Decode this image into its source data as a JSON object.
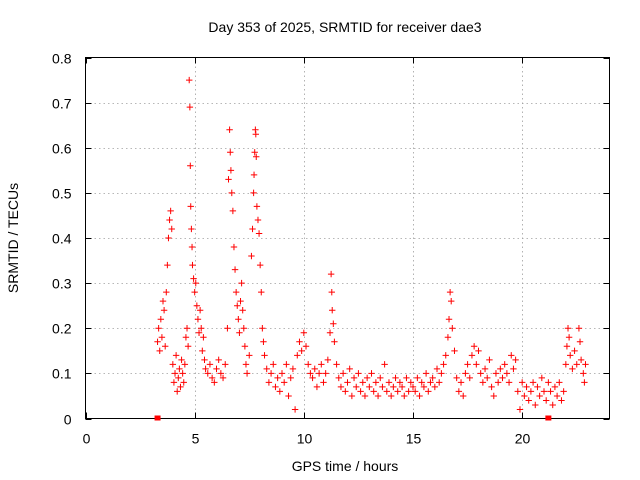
{
  "chart_data": {
    "type": "scatter",
    "title": "Day 353 of 2025, SRMTID for receiver dae3",
    "xlabel": "GPS time / hours",
    "ylabel": "SRMTID / TECUs",
    "xlim": [
      0,
      24
    ],
    "ylim": [
      0,
      0.8
    ],
    "xticks": [
      0,
      5,
      10,
      15,
      20
    ],
    "yticks": [
      0,
      0.1,
      0.2,
      0.3,
      0.4,
      0.5,
      0.6,
      0.7,
      0.8
    ],
    "grid": true,
    "marker": "+",
    "color": "#ff0000",
    "series": [
      {
        "name": "SRMTID",
        "points": [
          [
            3.3,
            0.0
          ],
          [
            21.2,
            0.0
          ],
          [
            3.3,
            0.17
          ],
          [
            3.35,
            0.2
          ],
          [
            3.4,
            0.15
          ],
          [
            3.45,
            0.22
          ],
          [
            3.5,
            0.18
          ],
          [
            3.55,
            0.26
          ],
          [
            3.6,
            0.24
          ],
          [
            3.65,
            0.16
          ],
          [
            3.7,
            0.28
          ],
          [
            3.75,
            0.34
          ],
          [
            3.8,
            0.4
          ],
          [
            3.85,
            0.44
          ],
          [
            3.9,
            0.46
          ],
          [
            3.95,
            0.42
          ],
          [
            4.0,
            0.12
          ],
          [
            4.05,
            0.08
          ],
          [
            4.1,
            0.1
          ],
          [
            4.15,
            0.14
          ],
          [
            4.2,
            0.06
          ],
          [
            4.25,
            0.09
          ],
          [
            4.3,
            0.11
          ],
          [
            4.35,
            0.07
          ],
          [
            4.4,
            0.13
          ],
          [
            4.45,
            0.1
          ],
          [
            4.5,
            0.08
          ],
          [
            4.55,
            0.12
          ],
          [
            4.6,
            0.18
          ],
          [
            4.65,
            0.2
          ],
          [
            4.7,
            0.16
          ],
          [
            4.75,
            0.75
          ],
          [
            4.78,
            0.69
          ],
          [
            4.8,
            0.56
          ],
          [
            4.82,
            0.47
          ],
          [
            4.85,
            0.42
          ],
          [
            4.88,
            0.38
          ],
          [
            4.9,
            0.34
          ],
          [
            4.95,
            0.31
          ],
          [
            5.0,
            0.28
          ],
          [
            5.05,
            0.3
          ],
          [
            5.1,
            0.25
          ],
          [
            5.15,
            0.22
          ],
          [
            5.2,
            0.19
          ],
          [
            5.25,
            0.24
          ],
          [
            5.3,
            0.2
          ],
          [
            5.35,
            0.15
          ],
          [
            5.4,
            0.18
          ],
          [
            5.45,
            0.13
          ],
          [
            5.5,
            0.11
          ],
          [
            5.6,
            0.1
          ],
          [
            5.7,
            0.12
          ],
          [
            5.8,
            0.09
          ],
          [
            5.9,
            0.08
          ],
          [
            6.0,
            0.11
          ],
          [
            6.1,
            0.13
          ],
          [
            6.2,
            0.1
          ],
          [
            6.3,
            0.09
          ],
          [
            6.4,
            0.12
          ],
          [
            6.5,
            0.2
          ],
          [
            6.55,
            0.53
          ],
          [
            6.6,
            0.64
          ],
          [
            6.63,
            0.59
          ],
          [
            6.66,
            0.55
          ],
          [
            6.7,
            0.5
          ],
          [
            6.75,
            0.46
          ],
          [
            6.8,
            0.38
          ],
          [
            6.85,
            0.33
          ],
          [
            6.9,
            0.28
          ],
          [
            6.95,
            0.25
          ],
          [
            7.0,
            0.22
          ],
          [
            7.05,
            0.19
          ],
          [
            7.1,
            0.26
          ],
          [
            7.15,
            0.3
          ],
          [
            7.2,
            0.24
          ],
          [
            7.25,
            0.2
          ],
          [
            7.3,
            0.16
          ],
          [
            7.35,
            0.12
          ],
          [
            7.4,
            0.1
          ],
          [
            7.5,
            0.14
          ],
          [
            7.6,
            0.36
          ],
          [
            7.65,
            0.42
          ],
          [
            7.7,
            0.5
          ],
          [
            7.72,
            0.54
          ],
          [
            7.75,
            0.59
          ],
          [
            7.78,
            0.64
          ],
          [
            7.8,
            0.63
          ],
          [
            7.82,
            0.58
          ],
          [
            7.85,
            0.47
          ],
          [
            7.9,
            0.44
          ],
          [
            7.95,
            0.41
          ],
          [
            8.0,
            0.34
          ],
          [
            8.05,
            0.28
          ],
          [
            8.1,
            0.2
          ],
          [
            8.15,
            0.17
          ],
          [
            8.2,
            0.14
          ],
          [
            8.3,
            0.11
          ],
          [
            8.4,
            0.08
          ],
          [
            8.5,
            0.1
          ],
          [
            8.6,
            0.12
          ],
          [
            8.7,
            0.07
          ],
          [
            8.8,
            0.09
          ],
          [
            8.9,
            0.06
          ],
          [
            9.0,
            0.1
          ],
          [
            9.1,
            0.08
          ],
          [
            9.2,
            0.12
          ],
          [
            9.3,
            0.05
          ],
          [
            9.4,
            0.09
          ],
          [
            9.5,
            0.11
          ],
          [
            9.6,
            0.02
          ],
          [
            9.7,
            0.14
          ],
          [
            9.8,
            0.17
          ],
          [
            9.9,
            0.15
          ],
          [
            10.0,
            0.19
          ],
          [
            10.1,
            0.16
          ],
          [
            10.2,
            0.12
          ],
          [
            10.3,
            0.1
          ],
          [
            10.4,
            0.09
          ],
          [
            10.5,
            0.11
          ],
          [
            10.6,
            0.07
          ],
          [
            10.7,
            0.1
          ],
          [
            10.8,
            0.12
          ],
          [
            10.9,
            0.08
          ],
          [
            11.0,
            0.1
          ],
          [
            11.1,
            0.13
          ],
          [
            11.2,
            0.19
          ],
          [
            11.25,
            0.32
          ],
          [
            11.28,
            0.28
          ],
          [
            11.3,
            0.24
          ],
          [
            11.35,
            0.21
          ],
          [
            11.4,
            0.17
          ],
          [
            11.5,
            0.12
          ],
          [
            11.6,
            0.09
          ],
          [
            11.7,
            0.07
          ],
          [
            11.8,
            0.1
          ],
          [
            11.9,
            0.06
          ],
          [
            12.0,
            0.08
          ],
          [
            12.1,
            0.11
          ],
          [
            12.2,
            0.05
          ],
          [
            12.3,
            0.09
          ],
          [
            12.4,
            0.07
          ],
          [
            12.5,
            0.1
          ],
          [
            12.6,
            0.06
          ],
          [
            12.7,
            0.08
          ],
          [
            12.8,
            0.05
          ],
          [
            12.9,
            0.09
          ],
          [
            13.0,
            0.07
          ],
          [
            13.1,
            0.1
          ],
          [
            13.2,
            0.06
          ],
          [
            13.3,
            0.08
          ],
          [
            13.4,
            0.05
          ],
          [
            13.5,
            0.09
          ],
          [
            13.6,
            0.07
          ],
          [
            13.7,
            0.12
          ],
          [
            13.8,
            0.06
          ],
          [
            13.9,
            0.08
          ],
          [
            14.0,
            0.05
          ],
          [
            14.1,
            0.07
          ],
          [
            14.2,
            0.09
          ],
          [
            14.3,
            0.06
          ],
          [
            14.4,
            0.08
          ],
          [
            14.5,
            0.07
          ],
          [
            14.6,
            0.05
          ],
          [
            14.7,
            0.09
          ],
          [
            14.8,
            0.06
          ],
          [
            14.9,
            0.08
          ],
          [
            15.0,
            0.07
          ],
          [
            15.1,
            0.06
          ],
          [
            15.2,
            0.09
          ],
          [
            15.3,
            0.05
          ],
          [
            15.4,
            0.08
          ],
          [
            15.5,
            0.07
          ],
          [
            15.6,
            0.1
          ],
          [
            15.7,
            0.06
          ],
          [
            15.8,
            0.08
          ],
          [
            15.9,
            0.09
          ],
          [
            16.0,
            0.07
          ],
          [
            16.1,
            0.11
          ],
          [
            16.2,
            0.08
          ],
          [
            16.3,
            0.1
          ],
          [
            16.4,
            0.12
          ],
          [
            16.5,
            0.14
          ],
          [
            16.6,
            0.18
          ],
          [
            16.65,
            0.22
          ],
          [
            16.7,
            0.28
          ],
          [
            16.75,
            0.26
          ],
          [
            16.8,
            0.2
          ],
          [
            16.9,
            0.15
          ],
          [
            17.0,
            0.09
          ],
          [
            17.1,
            0.06
          ],
          [
            17.2,
            0.08
          ],
          [
            17.3,
            0.05
          ],
          [
            17.4,
            0.1
          ],
          [
            17.5,
            0.12
          ],
          [
            17.6,
            0.09
          ],
          [
            17.7,
            0.14
          ],
          [
            17.8,
            0.16
          ],
          [
            17.9,
            0.12
          ],
          [
            18.0,
            0.15
          ],
          [
            18.1,
            0.1
          ],
          [
            18.2,
            0.08
          ],
          [
            18.3,
            0.11
          ],
          [
            18.4,
            0.09
          ],
          [
            18.5,
            0.13
          ],
          [
            18.6,
            0.07
          ],
          [
            18.7,
            0.05
          ],
          [
            18.8,
            0.1
          ],
          [
            18.9,
            0.08
          ],
          [
            19.0,
            0.11
          ],
          [
            19.1,
            0.09
          ],
          [
            19.2,
            0.12
          ],
          [
            19.3,
            0.1
          ],
          [
            19.4,
            0.08
          ],
          [
            19.5,
            0.14
          ],
          [
            19.6,
            0.11
          ],
          [
            19.7,
            0.13
          ],
          [
            19.8,
            0.06
          ],
          [
            19.9,
            0.02
          ],
          [
            20.0,
            0.08
          ],
          [
            20.1,
            0.05
          ],
          [
            20.2,
            0.07
          ],
          [
            20.3,
            0.04
          ],
          [
            20.4,
            0.06
          ],
          [
            20.5,
            0.08
          ],
          [
            20.6,
            0.03
          ],
          [
            20.7,
            0.07
          ],
          [
            20.8,
            0.05
          ],
          [
            20.9,
            0.09
          ],
          [
            21.0,
            0.06
          ],
          [
            21.1,
            0.04
          ],
          [
            21.2,
            0.08
          ],
          [
            21.3,
            0.06
          ],
          [
            21.4,
            0.03
          ],
          [
            21.5,
            0.07
          ],
          [
            21.6,
            0.05
          ],
          [
            21.7,
            0.08
          ],
          [
            21.8,
            0.04
          ],
          [
            21.9,
            0.06
          ],
          [
            22.0,
            0.12
          ],
          [
            22.05,
            0.16
          ],
          [
            22.1,
            0.2
          ],
          [
            22.15,
            0.18
          ],
          [
            22.2,
            0.14
          ],
          [
            22.3,
            0.11
          ],
          [
            22.4,
            0.15
          ],
          [
            22.5,
            0.12
          ],
          [
            22.6,
            0.2
          ],
          [
            22.65,
            0.17
          ],
          [
            22.7,
            0.13
          ],
          [
            22.8,
            0.1
          ],
          [
            22.85,
            0.08
          ],
          [
            22.9,
            0.12
          ]
        ]
      }
    ]
  }
}
